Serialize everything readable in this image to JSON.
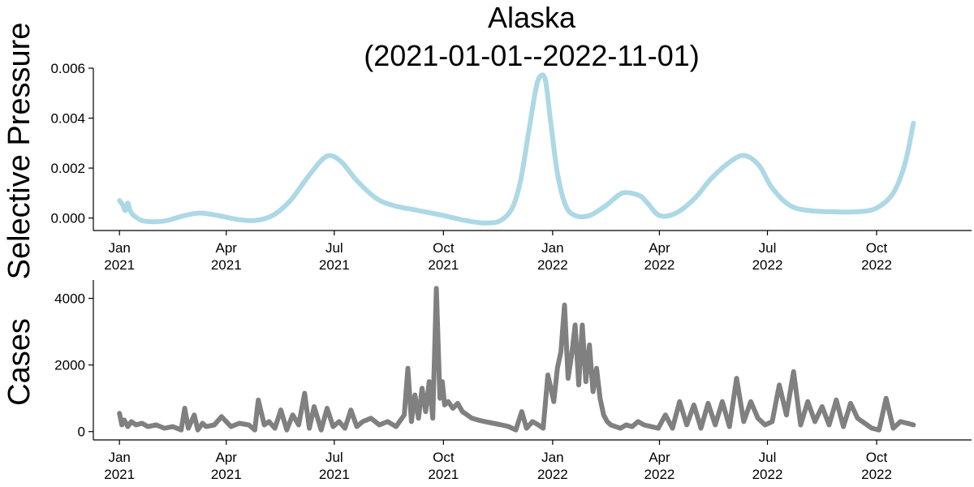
{
  "chart_data": [
    {
      "type": "line",
      "title_line1": "Alaska",
      "title_line2": "(2021-01-01--2022-11-01)",
      "ylabel": "Selective Pressure",
      "ylim": [
        -0.0005,
        0.006
      ],
      "yticks": [
        0.0,
        0.002,
        0.004,
        0.006
      ],
      "ytick_labels": [
        "0.000",
        "0.002",
        "0.004",
        "0.006"
      ],
      "xlim": [
        "2020-12-10",
        "2022-12-20"
      ],
      "xticks": [
        "2021-01-01",
        "2021-04-01",
        "2021-07-01",
        "2021-10-01",
        "2022-01-01",
        "2022-04-01",
        "2022-07-01",
        "2022-10-01"
      ],
      "xtick_labels": [
        [
          "Jan",
          "2021"
        ],
        [
          "Apr",
          "2021"
        ],
        [
          "Jul",
          "2021"
        ],
        [
          "Oct",
          "2021"
        ],
        [
          "Jan",
          "2022"
        ],
        [
          "Apr",
          "2022"
        ],
        [
          "Jul",
          "2022"
        ],
        [
          "Oct",
          "2022"
        ]
      ],
      "grid": false,
      "color": "#add8e6",
      "series": [
        {
          "x": [
            "2021-01-01",
            "2021-01-04",
            "2021-01-06",
            "2021-01-08",
            "2021-01-10",
            "2021-01-13",
            "2021-01-20",
            "2021-01-29",
            "2021-02-10",
            "2021-02-25",
            "2021-03-10",
            "2021-03-25",
            "2021-04-10",
            "2021-04-25",
            "2021-05-10",
            "2021-05-25",
            "2021-06-08",
            "2021-06-20",
            "2021-06-28",
            "2021-07-08",
            "2021-07-20",
            "2021-08-05",
            "2021-08-20",
            "2021-09-10",
            "2021-10-01",
            "2021-10-20",
            "2021-11-05",
            "2021-11-18",
            "2021-11-28",
            "2021-12-05",
            "2021-12-12",
            "2021-12-18",
            "2021-12-22",
            "2021-12-26",
            "2021-12-30",
            "2022-01-05",
            "2022-01-12",
            "2022-01-20",
            "2022-02-01",
            "2022-02-15",
            "2022-03-01",
            "2022-03-15",
            "2022-03-22",
            "2022-04-01",
            "2022-04-15",
            "2022-05-01",
            "2022-05-15",
            "2022-06-01",
            "2022-06-12",
            "2022-06-24",
            "2022-07-05",
            "2022-07-20",
            "2022-08-05",
            "2022-08-25",
            "2022-09-15",
            "2022-10-01",
            "2022-10-15",
            "2022-10-25",
            "2022-11-01"
          ],
          "y": [
            0.0007,
            0.0005,
            0.0003,
            0.0006,
            0.0003,
            0.0001,
            -0.0001,
            -0.00015,
            -0.0001,
            0.0001,
            0.0002,
            0.0001,
            -5e-05,
            -0.0001,
            0.0001,
            0.0007,
            0.0016,
            0.0023,
            0.0025,
            0.0022,
            0.0015,
            0.0008,
            0.0005,
            0.0003,
            0.0001,
            -0.0001,
            -0.0002,
            -0.0001,
            0.0004,
            0.0015,
            0.0035,
            0.0052,
            0.0057,
            0.0055,
            0.004,
            0.0018,
            0.0005,
            0.0001,
            0.0001,
            0.0005,
            0.001,
            0.0009,
            0.0006,
            0.0001,
            0.0002,
            0.0008,
            0.0016,
            0.0023,
            0.0025,
            0.0021,
            0.0012,
            0.0005,
            0.0003,
            0.00025,
            0.00025,
            0.0004,
            0.001,
            0.0022,
            0.0038
          ]
        }
      ]
    },
    {
      "type": "line",
      "ylabel": "Cases",
      "ylim": [
        -250,
        4550
      ],
      "yticks": [
        0,
        2000,
        4000
      ],
      "ytick_labels": [
        "0",
        "2000",
        "4000"
      ],
      "xlim": [
        "2020-12-10",
        "2022-12-20"
      ],
      "xticks": [
        "2021-01-01",
        "2021-04-01",
        "2021-07-01",
        "2021-10-01",
        "2022-01-01",
        "2022-04-01",
        "2022-07-01",
        "2022-10-01"
      ],
      "xtick_labels": [
        [
          "Jan",
          "2021"
        ],
        [
          "Apr",
          "2021"
        ],
        [
          "Jul",
          "2021"
        ],
        [
          "Oct",
          "2021"
        ],
        [
          "Jan",
          "2022"
        ],
        [
          "Apr",
          "2022"
        ],
        [
          "Jul",
          "2022"
        ],
        [
          "Oct",
          "2022"
        ]
      ],
      "grid": false,
      "color": "#808080",
      "series": [
        {
          "x": [
            "2021-01-01",
            "2021-01-03",
            "2021-01-05",
            "2021-01-08",
            "2021-01-11",
            "2021-01-15",
            "2021-01-20",
            "2021-01-25",
            "2021-02-01",
            "2021-02-08",
            "2021-02-15",
            "2021-02-22",
            "2021-02-25",
            "2021-02-28",
            "2021-03-05",
            "2021-03-08",
            "2021-03-12",
            "2021-03-15",
            "2021-03-22",
            "2021-03-28",
            "2021-04-05",
            "2021-04-12",
            "2021-04-20",
            "2021-04-25",
            "2021-04-28",
            "2021-05-03",
            "2021-05-07",
            "2021-05-12",
            "2021-05-17",
            "2021-05-22",
            "2021-05-27",
            "2021-06-01",
            "2021-06-06",
            "2021-06-10",
            "2021-06-14",
            "2021-06-20",
            "2021-06-25",
            "2021-06-30",
            "2021-07-05",
            "2021-07-10",
            "2021-07-15",
            "2021-07-20",
            "2021-07-25",
            "2021-08-01",
            "2021-08-08",
            "2021-08-15",
            "2021-08-22",
            "2021-08-29",
            "2021-09-01",
            "2021-09-04",
            "2021-09-07",
            "2021-09-10",
            "2021-09-13",
            "2021-09-16",
            "2021-09-19",
            "2021-09-22",
            "2021-09-25",
            "2021-09-28",
            "2021-09-30",
            "2021-10-02",
            "2021-10-05",
            "2021-10-09",
            "2021-10-13",
            "2021-10-17",
            "2021-10-21",
            "2021-10-25",
            "2021-10-30",
            "2021-11-05",
            "2021-11-12",
            "2021-11-19",
            "2021-11-25",
            "2021-12-01",
            "2021-12-06",
            "2021-12-10",
            "2021-12-15",
            "2021-12-20",
            "2021-12-24",
            "2021-12-28",
            "2022-01-02",
            "2022-01-05",
            "2022-01-08",
            "2022-01-11",
            "2022-01-14",
            "2022-01-17",
            "2022-01-20",
            "2022-01-23",
            "2022-01-26",
            "2022-01-29",
            "2022-02-01",
            "2022-02-04",
            "2022-02-07",
            "2022-02-10",
            "2022-02-13",
            "2022-02-16",
            "2022-02-19",
            "2022-02-23",
            "2022-02-27",
            "2022-03-04",
            "2022-03-09",
            "2022-03-14",
            "2022-03-19",
            "2022-03-25",
            "2022-03-31",
            "2022-04-06",
            "2022-04-12",
            "2022-04-18",
            "2022-04-24",
            "2022-04-30",
            "2022-05-06",
            "2022-05-12",
            "2022-05-18",
            "2022-05-24",
            "2022-05-30",
            "2022-06-05",
            "2022-06-11",
            "2022-06-17",
            "2022-06-23",
            "2022-06-29",
            "2022-07-05",
            "2022-07-11",
            "2022-07-17",
            "2022-07-23",
            "2022-07-29",
            "2022-08-04",
            "2022-08-10",
            "2022-08-16",
            "2022-08-22",
            "2022-08-28",
            "2022-09-03",
            "2022-09-09",
            "2022-09-15",
            "2022-09-21",
            "2022-09-27",
            "2022-10-03",
            "2022-10-09",
            "2022-10-15",
            "2022-10-21",
            "2022-10-27",
            "2022-11-01"
          ],
          "y": [
            550,
            200,
            350,
            150,
            300,
            200,
            250,
            150,
            200,
            100,
            150,
            50,
            700,
            100,
            500,
            50,
            250,
            150,
            200,
            450,
            150,
            250,
            200,
            50,
            950,
            200,
            300,
            100,
            650,
            50,
            500,
            200,
            1150,
            100,
            750,
            50,
            700,
            150,
            300,
            100,
            650,
            150,
            300,
            400,
            200,
            300,
            150,
            500,
            1900,
            300,
            1100,
            400,
            1300,
            600,
            1500,
            400,
            4300,
            1000,
            1500,
            800,
            900,
            700,
            850,
            600,
            500,
            400,
            350,
            300,
            250,
            200,
            150,
            50,
            600,
            100,
            300,
            200,
            100,
            1700,
            900,
            1900,
            2400,
            3800,
            1600,
            2300,
            3200,
            1400,
            3200,
            1500,
            2600,
            1200,
            1900,
            1000,
            500,
            300,
            200,
            150,
            100,
            200,
            150,
            300,
            200,
            150,
            100,
            500,
            100,
            900,
            200,
            800,
            100,
            850,
            200,
            900,
            150,
            1600,
            300,
            900,
            400,
            200,
            300,
            1400,
            500,
            1800,
            200,
            900,
            300,
            750,
            200,
            950,
            150,
            850,
            400,
            250,
            100,
            50,
            1000,
            100,
            300,
            250,
            200
          ]
        }
      ]
    }
  ]
}
